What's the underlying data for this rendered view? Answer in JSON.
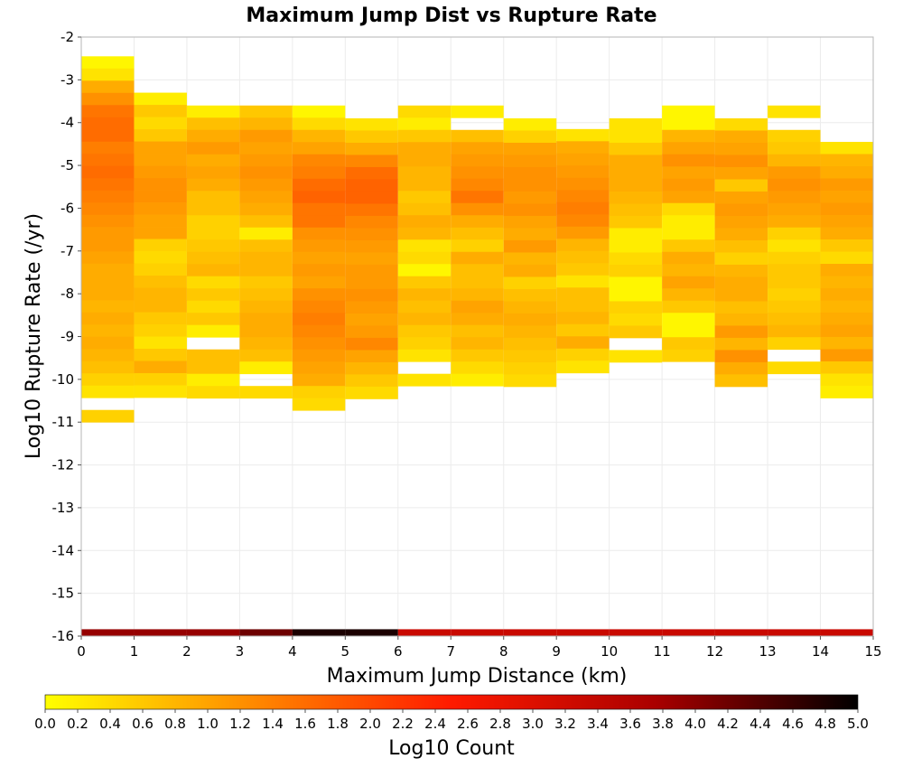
{
  "chart_data": {
    "type": "heatmap",
    "title": "Maximum Jump Dist vs Rupture Rate",
    "xlabel": "Maximum Jump Distance (km)",
    "ylabel": "Log10 Rupture Rate (/yr)",
    "xlim": [
      0,
      15
    ],
    "ylim": [
      -16,
      -2
    ],
    "x_ticks": [
      "0",
      "1",
      "2",
      "3",
      "4",
      "5",
      "6",
      "7",
      "8",
      "9",
      "10",
      "11",
      "12",
      "13",
      "14",
      "15"
    ],
    "y_ticks": [
      "-2",
      "-3",
      "-4",
      "-5",
      "-6",
      "-7",
      "-8",
      "-9",
      "-10",
      "-11",
      "-12",
      "-13",
      "-14",
      "-15",
      "-16"
    ],
    "grid": true,
    "cell_width_km": 1,
    "cell_height_log10": 0.285,
    "colorscale": {
      "label": "Log10 Count",
      "min": 0.0,
      "max": 5.0,
      "ticks": [
        "0.0",
        "0.2",
        "0.4",
        "0.6",
        "0.8",
        "1.0",
        "1.2",
        "1.4",
        "1.6",
        "1.8",
        "2.0",
        "2.2",
        "2.4",
        "2.6",
        "2.8",
        "3.0",
        "3.2",
        "3.4",
        "3.6",
        "3.8",
        "4.0",
        "4.2",
        "4.4",
        "4.6",
        "4.8",
        "5.0"
      ],
      "stops": [
        "#ffff00",
        "#ff8c00",
        "#ff1a00",
        "#aa0000",
        "#000000"
      ]
    },
    "bottom_row": {
      "y": -16,
      "values": [
        3.9,
        3.9,
        3.9,
        4.2,
        4.8,
        4.8,
        3.3,
        3.3,
        3.3,
        3.3,
        3.3,
        3.3,
        3.3,
        3.3,
        3.3
      ]
    },
    "columns": [
      {
        "x": 0,
        "y_top": -2.45,
        "values": [
          0.1,
          0.3,
          0.9,
          1.2,
          1.5,
          1.6,
          1.6,
          1.4,
          1.5,
          1.6,
          1.5,
          1.4,
          1.3,
          1.2,
          1.1,
          1.1,
          1.0,
          0.9,
          0.9,
          0.9,
          0.8,
          0.9,
          0.8,
          0.9,
          0.8,
          0.7,
          0.5,
          0.3,
          null,
          0.5
        ]
      },
      {
        "x": 1,
        "y_top": -3.3,
        "values": [
          0.2,
          0.6,
          0.4,
          0.6,
          1.0,
          1.0,
          1.1,
          1.2,
          1.2,
          1.1,
          1.0,
          1.0,
          0.5,
          0.4,
          0.5,
          0.7,
          0.8,
          0.8,
          0.6,
          0.5,
          0.3,
          0.6,
          0.9,
          0.5,
          0.3
        ]
      },
      {
        "x": 2,
        "y_top": -3.6,
        "values": [
          0.2,
          0.7,
          0.9,
          1.1,
          0.9,
          1.0,
          0.9,
          0.7,
          0.7,
          0.5,
          0.5,
          0.6,
          0.7,
          0.8,
          0.4,
          0.6,
          0.4,
          0.6,
          0.2,
          null,
          0.7,
          0.7,
          0.2,
          0.4
        ]
      },
      {
        "x": 3,
        "y_top": -3.6,
        "values": [
          0.6,
          0.8,
          1.1,
          1.0,
          1.1,
          1.2,
          1.1,
          1.0,
          0.9,
          0.7,
          0.2,
          0.7,
          0.8,
          0.8,
          0.6,
          0.7,
          0.8,
          0.9,
          0.9,
          0.8,
          0.7,
          0.2,
          null,
          0.4
        ]
      },
      {
        "x": 4,
        "y_top": -3.6,
        "values": [
          0.1,
          0.4,
          0.8,
          1.0,
          1.3,
          1.4,
          1.6,
          1.7,
          1.5,
          1.5,
          1.2,
          1.1,
          1.0,
          1.1,
          1.0,
          1.2,
          1.3,
          1.4,
          1.3,
          1.2,
          1.1,
          1.0,
          0.9,
          0.5,
          0.4
        ]
      },
      {
        "x": 5,
        "y_top": -3.9,
        "values": [
          0.3,
          0.6,
          0.9,
          1.3,
          1.6,
          1.7,
          1.7,
          1.5,
          1.3,
          1.2,
          1.1,
          1.0,
          1.1,
          1.1,
          1.2,
          1.1,
          1.0,
          1.1,
          1.3,
          1.0,
          0.8,
          0.6,
          0.4
        ]
      },
      {
        "x": 6,
        "y_top": -3.6,
        "values": [
          0.4,
          0.2,
          0.6,
          0.9,
          0.9,
          0.8,
          0.8,
          0.6,
          0.7,
          0.9,
          0.8,
          0.3,
          0.4,
          0.1,
          0.6,
          0.8,
          0.7,
          0.8,
          0.6,
          0.5,
          0.3,
          null,
          0.3
        ]
      },
      {
        "x": 7,
        "y_top": -3.6,
        "values": [
          0.2,
          null,
          0.7,
          1.0,
          1.1,
          1.2,
          1.3,
          1.5,
          1.2,
          0.9,
          0.7,
          0.5,
          0.9,
          0.7,
          0.7,
          0.8,
          1.0,
          0.9,
          0.7,
          0.8,
          0.6,
          0.4,
          0.2
        ]
      },
      {
        "x": 8,
        "y_top": -3.9,
        "values": [
          0.2,
          0.5,
          1.0,
          1.1,
          1.2,
          1.2,
          1.1,
          1.2,
          1.0,
          0.9,
          1.1,
          0.8,
          0.9,
          0.5,
          0.7,
          0.8,
          0.9,
          0.8,
          0.7,
          0.6,
          0.5,
          0.4
        ]
      },
      {
        "x": 9,
        "y_top": -4.15,
        "values": [
          0.3,
          0.9,
          1.0,
          1.1,
          1.2,
          1.3,
          1.4,
          1.3,
          1.1,
          0.8,
          0.7,
          0.6,
          0.3,
          0.7,
          0.7,
          0.8,
          0.6,
          0.9,
          0.5,
          0.3
        ]
      },
      {
        "x": 10,
        "y_top": -3.9,
        "values": [
          0.3,
          0.3,
          0.6,
          0.9,
          0.9,
          0.9,
          0.8,
          0.7,
          0.6,
          0.2,
          0.2,
          0.4,
          0.5,
          0.1,
          0.1,
          0.5,
          0.4,
          0.6,
          null,
          0.3
        ]
      },
      {
        "x": 11,
        "y_top": -3.6,
        "values": [
          0.1,
          0.1,
          0.8,
          1.0,
          1.2,
          1.0,
          1.1,
          1.0,
          0.4,
          0.2,
          0.2,
          0.6,
          0.9,
          0.8,
          1.0,
          0.8,
          0.6,
          0.1,
          0.1,
          0.6,
          0.5
        ]
      },
      {
        "x": 12,
        "y_top": -3.9,
        "values": [
          0.4,
          0.9,
          1.0,
          1.2,
          1.0,
          0.6,
          1.0,
          1.1,
          1.0,
          0.9,
          0.7,
          0.5,
          0.8,
          0.9,
          0.9,
          0.7,
          0.8,
          1.1,
          0.8,
          1.2,
          0.9,
          0.7
        ]
      },
      {
        "x": 13,
        "y_top": -3.6,
        "values": [
          0.3,
          null,
          0.5,
          0.6,
          0.8,
          1.1,
          1.2,
          1.1,
          1.0,
          0.9,
          0.5,
          0.3,
          0.5,
          0.6,
          0.6,
          0.5,
          0.6,
          0.7,
          0.8,
          0.5,
          null,
          0.4
        ]
      },
      {
        "x": 14,
        "y_top": -4.45,
        "values": [
          0.3,
          0.8,
          0.9,
          1.1,
          1.0,
          1.1,
          1.0,
          0.9,
          0.6,
          0.4,
          0.9,
          0.8,
          0.9,
          0.8,
          0.9,
          1.0,
          0.8,
          1.1,
          0.6,
          0.3,
          0.2
        ]
      }
    ]
  }
}
